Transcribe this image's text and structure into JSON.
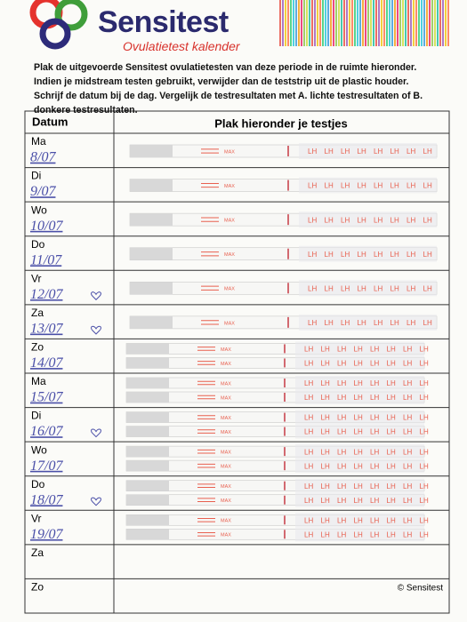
{
  "header": {
    "brand": "Sensitest",
    "subtitle": "Ovulatietest kalender"
  },
  "instructions": [
    {
      "text": "Plak de uitgevoerde Sensitest ovulatietesten van deze periode in de ruimte hieronder. Indien je midstream testen gebruikt, verwijder dan de teststrip uit de plastic houder. Schrijf de datum bij de dag. Vergelijk de testresultaten met A. ",
      "bold": false
    },
    {
      "text": "lichte testresultaten",
      "bold": true
    },
    {
      "text": " of B. ",
      "bold": false
    },
    {
      "text": "donkere testresultaten",
      "bold": true
    },
    {
      "text": ".",
      "bold": false
    }
  ],
  "table": {
    "headers": [
      "Datum",
      "Plak hieronder je testjes"
    ],
    "rows": [
      {
        "day": "Ma",
        "date": "8/07",
        "heart": false
      },
      {
        "day": "Di",
        "date": "9/07",
        "heart": false
      },
      {
        "day": "Wo",
        "date": "10/07",
        "heart": false
      },
      {
        "day": "Do",
        "date": "11/07",
        "heart": false
      },
      {
        "day": "Vr",
        "date": "12/07",
        "heart": true
      },
      {
        "day": "Za",
        "date": "13/07",
        "heart": true
      },
      {
        "day": "Zo",
        "date": "14/07",
        "heart": false
      },
      {
        "day": "Ma",
        "date": "15/07",
        "heart": false
      },
      {
        "day": "Di",
        "date": "16/07",
        "heart": true
      },
      {
        "day": "Wo",
        "date": "17/07",
        "heart": false
      },
      {
        "day": "Do",
        "date": "18/07",
        "heart": true
      },
      {
        "day": "Vr",
        "date": "19/07",
        "heart": false
      },
      {
        "day": "Za"
      },
      {
        "day": "Zo"
      }
    ]
  },
  "strip_labels": {
    "max": "MAX",
    "lh": "LH"
  },
  "footer": "© Sensitest"
}
